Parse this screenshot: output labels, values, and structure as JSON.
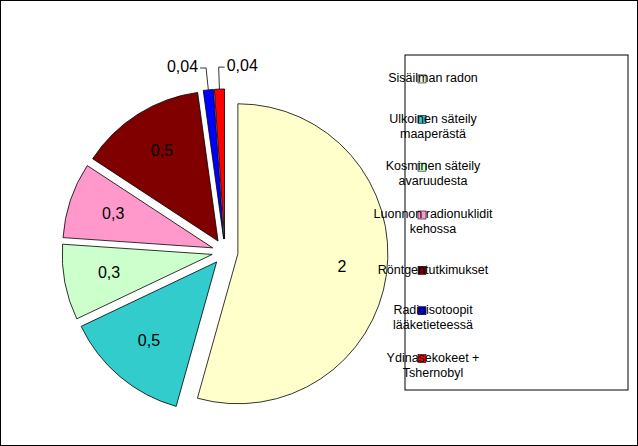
{
  "chart_data": {
    "type": "pie",
    "categories": [
      "Sisäilman radon",
      "Ulkoinen säteily maaperästä",
      "Kosminen säteily avaruudesta",
      "Luonnon radionuklidit kehossa",
      "Röntgentutkimukset",
      "Radioisotoopit lääketieteessä",
      "Ydinasekokeet + Tshernobyl"
    ],
    "values": [
      2,
      0.5,
      0.3,
      0.3,
      0.5,
      0.04,
      0.04
    ],
    "value_labels": [
      "2",
      "0,5",
      "0,3",
      "0,3",
      "0,5",
      "0,04",
      "0,04"
    ],
    "colors": [
      "#FFFFCC",
      "#33CCCC",
      "#CCFFCC",
      "#FF99CC",
      "#800000",
      "#0000FF",
      "#FF0000"
    ],
    "data_labels": true,
    "legend": "right"
  }
}
